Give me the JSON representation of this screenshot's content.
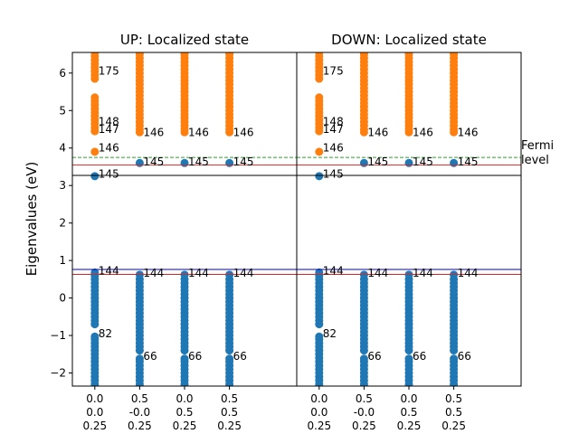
{
  "chart_data": [
    {
      "type": "scatter",
      "title": "UP: Localized state",
      "ylabel": "Eigenvalues (eV)",
      "ylim": [
        -2.35,
        6.55
      ],
      "xlim": [
        -0.5,
        4.5
      ],
      "yticks": [
        -2,
        -1,
        0,
        1,
        2,
        3,
        4,
        5,
        6
      ],
      "kpoints": [
        {
          "x": 0,
          "coords": [
            "0.0",
            "0.0",
            "0.25"
          ]
        },
        {
          "x": 1,
          "coords": [
            "0.5",
            "-0.0",
            "0.25"
          ]
        },
        {
          "x": 2,
          "coords": [
            "0.0",
            "0.5",
            "0.25"
          ]
        },
        {
          "x": 3,
          "coords": [
            "0.5",
            "0.5",
            "0.25"
          ]
        }
      ],
      "series": [
        {
          "color": "#1f77b4",
          "columns": [
            {
              "x": 0,
              "y": [
                -2.3,
                -2.2,
                -2.1,
                -2.0,
                -1.9,
                -1.8,
                -1.7,
                -1.6,
                -1.5,
                -1.4,
                -1.3,
                -1.2,
                -1.1,
                -1.03,
                -0.7,
                -0.6,
                -0.5,
                -0.4,
                -0.3,
                -0.2,
                -0.1,
                0.0,
                0.1,
                0.2,
                0.3,
                0.4,
                0.5,
                0.6,
                0.68
              ]
            },
            {
              "x": 1,
              "y": [
                -2.3,
                -2.2,
                -2.1,
                -2.0,
                -1.9,
                -1.8,
                -1.7,
                -1.62,
                -1.4,
                -1.3,
                -1.2,
                -1.1,
                -1.0,
                -0.9,
                -0.8,
                -0.7,
                -0.6,
                -0.5,
                -0.4,
                -0.3,
                -0.2,
                -0.1,
                0.0,
                0.1,
                0.2,
                0.3,
                0.4,
                0.5,
                0.62
              ]
            },
            {
              "x": 2,
              "y": [
                -2.3,
                -2.2,
                -2.1,
                -2.0,
                -1.9,
                -1.8,
                -1.7,
                -1.62,
                -1.4,
                -1.3,
                -1.2,
                -1.1,
                -1.0,
                -0.9,
                -0.8,
                -0.7,
                -0.6,
                -0.5,
                -0.4,
                -0.3,
                -0.2,
                -0.1,
                0.0,
                0.1,
                0.2,
                0.3,
                0.4,
                0.5,
                0.62
              ]
            },
            {
              "x": 3,
              "y": [
                -2.3,
                -2.2,
                -2.1,
                -2.0,
                -1.9,
                -1.8,
                -1.7,
                -1.62,
                -1.4,
                -1.3,
                -1.2,
                -1.1,
                -1.0,
                -0.9,
                -0.8,
                -0.7,
                -0.6,
                -0.5,
                -0.4,
                -0.3,
                -0.2,
                -0.1,
                0.0,
                0.1,
                0.2,
                0.3,
                0.4,
                0.5,
                0.62
              ]
            },
            {
              "x": 0,
              "y": [
                3.25
              ]
            },
            {
              "x": 1,
              "y": [
                3.6
              ]
            },
            {
              "x": 2,
              "y": [
                3.6
              ]
            },
            {
              "x": 3,
              "y": [
                3.6
              ]
            }
          ]
        },
        {
          "color": "#ff7f0e",
          "columns": [
            {
              "x": 0,
              "y": [
                3.9,
                4.45,
                4.55,
                4.65,
                4.75,
                4.85,
                4.95,
                5.05,
                5.15,
                5.25,
                5.35,
                5.85,
                5.95,
                6.05,
                6.15,
                6.25,
                6.35,
                6.45,
                6.55
              ]
            },
            {
              "x": 1,
              "y": [
                4.42,
                4.5,
                4.6,
                4.7,
                4.8,
                4.9,
                5.0,
                5.1,
                5.2,
                5.3,
                5.4,
                5.5,
                5.6,
                5.7,
                5.8,
                5.9,
                6.0,
                6.1,
                6.2,
                6.3,
                6.4,
                6.5,
                6.55
              ]
            },
            {
              "x": 2,
              "y": [
                4.42,
                4.5,
                4.6,
                4.7,
                4.8,
                4.9,
                5.0,
                5.1,
                5.2,
                5.3,
                5.4,
                5.5,
                5.6,
                5.7,
                5.8,
                5.9,
                6.0,
                6.1,
                6.2,
                6.3,
                6.4,
                6.5,
                6.55
              ]
            },
            {
              "x": 3,
              "y": [
                4.42,
                4.5,
                4.6,
                4.7,
                4.8,
                4.9,
                5.0,
                5.1,
                5.2,
                5.3,
                5.4,
                5.5,
                5.6,
                5.7,
                5.8,
                5.9,
                6.0,
                6.1,
                6.2,
                6.3,
                6.4,
                6.5,
                6.55
              ]
            }
          ]
        }
      ],
      "hlines": [
        {
          "y": 3.75,
          "color": "#2ca02c",
          "style": "dashed"
        },
        {
          "y": 3.55,
          "color": "#d62728",
          "style": "solid"
        },
        {
          "y": 3.27,
          "color": "#000000",
          "style": "solid"
        },
        {
          "y": 0.76,
          "color": "#0000cc",
          "style": "solid"
        },
        {
          "y": 0.63,
          "color": "#d62728",
          "style": "solid"
        }
      ],
      "annotations": [
        {
          "x": 0,
          "y": 6.05,
          "text": "175"
        },
        {
          "x": 0,
          "y": 4.7,
          "text": "148"
        },
        {
          "x": 0,
          "y": 4.5,
          "text": "147"
        },
        {
          "x": 0,
          "y": 4.0,
          "text": "146"
        },
        {
          "x": 0,
          "y": 3.3,
          "text": "145"
        },
        {
          "x": 0,
          "y": 0.73,
          "text": "144"
        },
        {
          "x": 0,
          "y": -0.95,
          "text": "82"
        },
        {
          "x": 1,
          "y": 4.42,
          "text": "146"
        },
        {
          "x": 2,
          "y": 4.42,
          "text": "146"
        },
        {
          "x": 3,
          "y": 4.42,
          "text": "146"
        },
        {
          "x": 1,
          "y": 3.63,
          "text": "145"
        },
        {
          "x": 2,
          "y": 3.63,
          "text": "145"
        },
        {
          "x": 3,
          "y": 3.63,
          "text": "145"
        },
        {
          "x": 1,
          "y": 0.67,
          "text": "144"
        },
        {
          "x": 2,
          "y": 0.67,
          "text": "144"
        },
        {
          "x": 3,
          "y": 0.67,
          "text": "144"
        },
        {
          "x": 1,
          "y": -1.55,
          "text": "66"
        },
        {
          "x": 2,
          "y": -1.55,
          "text": "66"
        },
        {
          "x": 3,
          "y": -1.55,
          "text": "66"
        }
      ]
    },
    {
      "type": "scatter",
      "title": "DOWN: Localized state",
      "ylim": [
        -2.35,
        6.55
      ],
      "xlim": [
        -0.5,
        4.5
      ],
      "kpoints": [
        {
          "x": 0,
          "coords": [
            "0.0",
            "0.0",
            "0.25"
          ]
        },
        {
          "x": 1,
          "coords": [
            "0.5",
            "-0.0",
            "0.25"
          ]
        },
        {
          "x": 2,
          "coords": [
            "0.0",
            "0.5",
            "0.25"
          ]
        },
        {
          "x": 3,
          "coords": [
            "0.5",
            "0.5",
            "0.25"
          ]
        }
      ],
      "series": [
        {
          "color": "#1f77b4",
          "columns": [
            {
              "x": 0,
              "y": [
                -2.3,
                -2.2,
                -2.1,
                -2.0,
                -1.9,
                -1.8,
                -1.7,
                -1.6,
                -1.5,
                -1.4,
                -1.3,
                -1.2,
                -1.1,
                -1.03,
                -0.7,
                -0.6,
                -0.5,
                -0.4,
                -0.3,
                -0.2,
                -0.1,
                0.0,
                0.1,
                0.2,
                0.3,
                0.4,
                0.5,
                0.6,
                0.68
              ]
            },
            {
              "x": 1,
              "y": [
                -2.3,
                -2.2,
                -2.1,
                -2.0,
                -1.9,
                -1.8,
                -1.7,
                -1.62,
                -1.4,
                -1.3,
                -1.2,
                -1.1,
                -1.0,
                -0.9,
                -0.8,
                -0.7,
                -0.6,
                -0.5,
                -0.4,
                -0.3,
                -0.2,
                -0.1,
                0.0,
                0.1,
                0.2,
                0.3,
                0.4,
                0.5,
                0.62
              ]
            },
            {
              "x": 2,
              "y": [
                -2.3,
                -2.2,
                -2.1,
                -2.0,
                -1.9,
                -1.8,
                -1.7,
                -1.62,
                -1.4,
                -1.3,
                -1.2,
                -1.1,
                -1.0,
                -0.9,
                -0.8,
                -0.7,
                -0.6,
                -0.5,
                -0.4,
                -0.3,
                -0.2,
                -0.1,
                0.0,
                0.1,
                0.2,
                0.3,
                0.4,
                0.5,
                0.62
              ]
            },
            {
              "x": 3,
              "y": [
                -2.3,
                -2.2,
                -2.1,
                -2.0,
                -1.9,
                -1.8,
                -1.7,
                -1.62,
                -1.4,
                -1.3,
                -1.2,
                -1.1,
                -1.0,
                -0.9,
                -0.8,
                -0.7,
                -0.6,
                -0.5,
                -0.4,
                -0.3,
                -0.2,
                -0.1,
                0.0,
                0.1,
                0.2,
                0.3,
                0.4,
                0.5,
                0.62
              ]
            },
            {
              "x": 0,
              "y": [
                3.25
              ]
            },
            {
              "x": 1,
              "y": [
                3.6
              ]
            },
            {
              "x": 2,
              "y": [
                3.6
              ]
            },
            {
              "x": 3,
              "y": [
                3.6
              ]
            }
          ]
        },
        {
          "color": "#ff7f0e",
          "columns": [
            {
              "x": 0,
              "y": [
                3.9,
                4.45,
                4.55,
                4.65,
                4.75,
                4.85,
                4.95,
                5.05,
                5.15,
                5.25,
                5.35,
                5.85,
                5.95,
                6.05,
                6.15,
                6.25,
                6.35,
                6.45,
                6.55
              ]
            },
            {
              "x": 1,
              "y": [
                4.42,
                4.5,
                4.6,
                4.7,
                4.8,
                4.9,
                5.0,
                5.1,
                5.2,
                5.3,
                5.4,
                5.5,
                5.6,
                5.7,
                5.8,
                5.9,
                6.0,
                6.1,
                6.2,
                6.3,
                6.4,
                6.5,
                6.55
              ]
            },
            {
              "x": 2,
              "y": [
                4.42,
                4.5,
                4.6,
                4.7,
                4.8,
                4.9,
                5.0,
                5.1,
                5.2,
                5.3,
                5.4,
                5.5,
                5.6,
                5.7,
                5.8,
                5.9,
                6.0,
                6.1,
                6.2,
                6.3,
                6.4,
                6.5,
                6.55
              ]
            },
            {
              "x": 3,
              "y": [
                4.42,
                4.5,
                4.6,
                4.7,
                4.8,
                4.9,
                5.0,
                5.1,
                5.2,
                5.3,
                5.4,
                5.5,
                5.6,
                5.7,
                5.8,
                5.9,
                6.0,
                6.1,
                6.2,
                6.3,
                6.4,
                6.5,
                6.55
              ]
            }
          ]
        }
      ],
      "hlines": [
        {
          "y": 3.75,
          "color": "#2ca02c",
          "style": "dashed"
        },
        {
          "y": 3.55,
          "color": "#d62728",
          "style": "solid"
        },
        {
          "y": 3.27,
          "color": "#000000",
          "style": "solid"
        },
        {
          "y": 0.76,
          "color": "#0000cc",
          "style": "solid"
        },
        {
          "y": 0.63,
          "color": "#d62728",
          "style": "solid"
        }
      ],
      "annotations": [
        {
          "x": 0,
          "y": 6.05,
          "text": "175"
        },
        {
          "x": 0,
          "y": 4.7,
          "text": "148"
        },
        {
          "x": 0,
          "y": 4.5,
          "text": "147"
        },
        {
          "x": 0,
          "y": 4.0,
          "text": "146"
        },
        {
          "x": 0,
          "y": 3.3,
          "text": "145"
        },
        {
          "x": 0,
          "y": 0.73,
          "text": "144"
        },
        {
          "x": 0,
          "y": -0.95,
          "text": "82"
        },
        {
          "x": 1,
          "y": 4.42,
          "text": "146"
        },
        {
          "x": 2,
          "y": 4.42,
          "text": "146"
        },
        {
          "x": 3,
          "y": 4.42,
          "text": "146"
        },
        {
          "x": 1,
          "y": 3.63,
          "text": "145"
        },
        {
          "x": 2,
          "y": 3.63,
          "text": "145"
        },
        {
          "x": 3,
          "y": 3.63,
          "text": "145"
        },
        {
          "x": 1,
          "y": 0.67,
          "text": "144"
        },
        {
          "x": 2,
          "y": 0.67,
          "text": "144"
        },
        {
          "x": 3,
          "y": 0.67,
          "text": "144"
        },
        {
          "x": 1,
          "y": -1.55,
          "text": "66"
        },
        {
          "x": 2,
          "y": -1.55,
          "text": "66"
        },
        {
          "x": 3,
          "y": -1.55,
          "text": "66"
        }
      ],
      "side_label": {
        "y": 3.75,
        "lines": [
          "Fermi",
          "level"
        ]
      }
    }
  ]
}
